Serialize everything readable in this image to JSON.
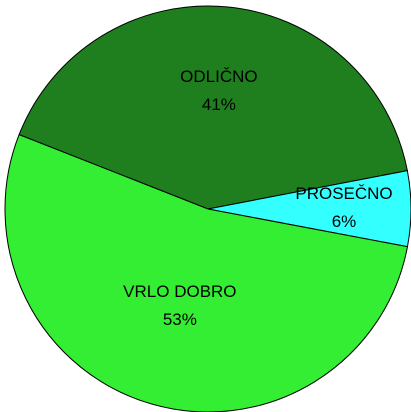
{
  "chart_data": {
    "type": "pie",
    "categories": [
      "ODLIČNO",
      "PROSEČNO",
      "VRLO DOBRO"
    ],
    "values": [
      41,
      6,
      53
    ],
    "value_labels": [
      "41%",
      "6%",
      "53%"
    ],
    "colors": [
      "#1f7f1f",
      "#33ffff",
      "#33ee33"
    ]
  }
}
